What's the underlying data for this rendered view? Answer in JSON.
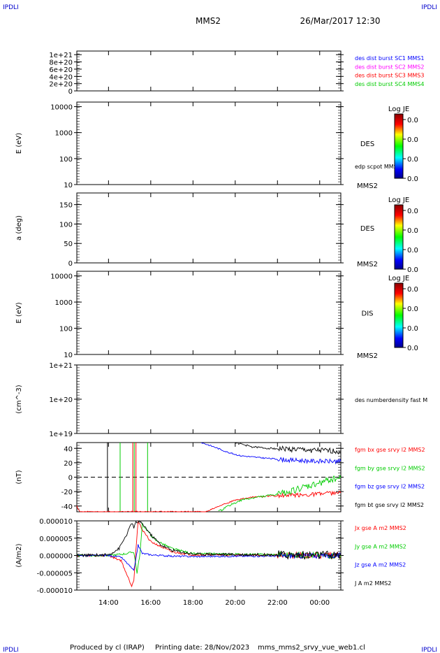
{
  "corner_left": "IPDLI",
  "corner_right": "IPDLI",
  "corner_bottom_left": "IPDLI",
  "corner_bottom_right": "IPDLI",
  "header": {
    "spacecraft": "MMS2",
    "datetime": "26/Mar/2017 12:30"
  },
  "footer": {
    "produced": "Produced by cl (IRAP)",
    "printing_date": "Printing date: 28/Nov/2023",
    "file": "mms_mms2_srvy_vue_web1.cl"
  },
  "colors": {
    "black": "#000000",
    "blue": "#0000ff",
    "magenta": "#ff00ff",
    "red": "#ff0000",
    "green": "#00cc00",
    "corner": "#0000cc"
  },
  "chart_data": [
    {
      "type": "line",
      "ylim": [
        0,
        1.1e+21
      ],
      "y_ticks": [
        "1e+21",
        "8e+20",
        "6e+20",
        "4e+20",
        "2e+20",
        "0"
      ],
      "y_tick_values": [
        1e+21,
        8e+20,
        6e+20,
        4e+20,
        2e+20,
        0
      ],
      "zero_line": true,
      "legend": [
        {
          "label": "des dist burst SC1 MMS1",
          "color": "#0000ff"
        },
        {
          "label": "des dist burst SC2 MMS2",
          "color": "#ff00ff"
        },
        {
          "label": "des dist burst SC3 MMS3",
          "color": "#ff0000"
        },
        {
          "label": "des dist burst SC4 MMS4",
          "color": "#00cc00"
        }
      ]
    },
    {
      "type": "heatmap",
      "ylabel": "E (eV)",
      "y_scale": "log",
      "ylim": [
        10,
        15000
      ],
      "y_ticks": [
        "10000",
        "1000",
        "100",
        "10"
      ],
      "y_tick_values": [
        10000,
        1000,
        100,
        10
      ],
      "species": "DES",
      "spacecraft": "MMS2",
      "overlay_label": "edp scpot MMS2",
      "colorbar": {
        "title": "Log JE",
        "ticks": [
          "0.0",
          "0.0",
          "0.0",
          "0.0"
        ]
      }
    },
    {
      "type": "heatmap",
      "ylabel": "a (deg)",
      "ylim": [
        0,
        180
      ],
      "y_ticks": [
        "150",
        "100",
        "50",
        "0"
      ],
      "y_tick_values": [
        150,
        100,
        50,
        0
      ],
      "species": "DES",
      "spacecraft": "MMS2",
      "colorbar": {
        "title": "Log JE",
        "ticks": [
          "0.0",
          "0.0",
          "0.0",
          "0.0"
        ]
      }
    },
    {
      "type": "heatmap",
      "ylabel": "E (eV)",
      "y_scale": "log",
      "ylim": [
        10,
        15000
      ],
      "y_ticks": [
        "10000",
        "1000",
        "100",
        "10"
      ],
      "y_tick_values": [
        10000,
        1000,
        100,
        10
      ],
      "species": "DIS",
      "spacecraft": "MMS2",
      "colorbar": {
        "title": "Log JE",
        "ticks": [
          "0.0",
          "0.0",
          "0.0",
          "0.0"
        ]
      }
    },
    {
      "type": "line",
      "ylabel": "(cm^-3)",
      "y_scale": "log",
      "ylim": [
        1e+19,
        1e+21
      ],
      "y_ticks": [
        "1e+21",
        "1e+20",
        "1e+19"
      ],
      "y_tick_values": [
        1e+21,
        1e+20,
        1e+19
      ],
      "legend": [
        {
          "label": "des numberdensity fast M",
          "color": "#000000"
        }
      ]
    },
    {
      "type": "line",
      "ylabel": "(nT)",
      "ylim": [
        -48,
        48
      ],
      "y_ticks": [
        "40",
        "20",
        "0",
        "-20",
        "-40"
      ],
      "y_tick_values": [
        40,
        20,
        0,
        -20,
        -40
      ],
      "zero_line": true,
      "legend": [
        {
          "label": "fgm bx gse srvy l2 MMS2",
          "color": "#ff0000"
        },
        {
          "label": "fgm by gse srvy l2 MMS2",
          "color": "#00cc00"
        },
        {
          "label": "fgm bz gse srvy l2 MMS2",
          "color": "#0000ff"
        },
        {
          "label": "fgm bt gse srvy l2 MMS2",
          "color": "#000000"
        }
      ],
      "series": [
        {
          "name": "fgm bt gse srvy l2 MMS2",
          "color": "#000000",
          "x": [
            20.0,
            20.8,
            21.6,
            22.4,
            23.2,
            24.0,
            24.8,
            25.0
          ],
          "y": [
            48,
            42,
            40,
            39,
            38,
            37,
            36,
            36
          ],
          "noise": 0.1
        },
        {
          "name": "fgm bz gse srvy l2 MMS2",
          "color": "#0000ff",
          "x": [
            18.4,
            19.0,
            19.6,
            20.2,
            20.8,
            21.6,
            22.4,
            23.2,
            24.0,
            25.0
          ],
          "y": [
            48,
            42,
            35,
            30,
            28,
            26,
            24,
            23,
            22,
            22
          ],
          "noise": 0.08
        },
        {
          "name": "fgm bx gse srvy l2 MMS2",
          "color": "#ff0000",
          "x": [
            12.5,
            12.65,
            18.6,
            19.2,
            20.0,
            21.0,
            22.0,
            23.0,
            24.0,
            25.0
          ],
          "y": [
            -40,
            -48,
            -48,
            -40,
            -32,
            -27,
            -26,
            -25,
            -23,
            -22
          ],
          "noise": 0.08
        },
        {
          "name": "fgm by gse srvy l2 MMS2",
          "color": "#00cc00",
          "x": [
            19.2,
            19.8,
            20.4,
            21.2,
            22.0,
            22.8,
            23.6,
            24.0,
            24.5,
            25.0
          ],
          "y": [
            -48,
            -38,
            -31,
            -27,
            -24,
            -18,
            -12,
            -8,
            -3,
            -1
          ],
          "noise": 0.12
        }
      ],
      "vertical_lines": [
        {
          "x": 13.95,
          "color": "#000000"
        },
        {
          "x": 14.55,
          "color": "#00cc00"
        },
        {
          "x": 15.15,
          "color": "#ff0000"
        },
        {
          "x": 15.22,
          "color": "#00cc00"
        },
        {
          "x": 15.3,
          "color": "#ff0000"
        },
        {
          "x": 15.85,
          "color": "#00cc00"
        }
      ]
    },
    {
      "type": "line",
      "ylabel": "(A/m2)",
      "xlim": [
        12.5,
        25.0
      ],
      "ylim": [
        -1e-05,
        1e-05
      ],
      "y_ticks": [
        "0.000010",
        "0.000005",
        "0.000000",
        "-0.000005",
        "-0.000010"
      ],
      "y_tick_values": [
        1e-05,
        5e-06,
        0,
        -5e-06,
        -1e-05
      ],
      "x_ticks": [
        "14:00",
        "16:00",
        "18:00",
        "20:00",
        "22:00",
        "00:00"
      ],
      "x_tick_values": [
        14,
        16,
        18,
        20,
        22,
        24
      ],
      "legend": [
        {
          "label": "Jx gse A m2 MMS2",
          "color": "#ff0000"
        },
        {
          "label": "Jy gse A m2 MMS2",
          "color": "#00cc00"
        },
        {
          "label": "Jz gse A m2 MMS2",
          "color": "#0000ff"
        },
        {
          "label": "J A m2 MMS2",
          "color": "#000000"
        }
      ],
      "series": [
        {
          "name": "Jx gse A m2 MMS2",
          "color": "#ff0000",
          "x": [
            12.5,
            14.0,
            14.6,
            14.9,
            15.1,
            15.2,
            15.3,
            15.4,
            15.6,
            16.0,
            17.0,
            18.0,
            25.0
          ],
          "y": [
            0,
            0,
            -1.5e-06,
            -6e-06,
            -8.8e-06,
            -7e-06,
            2e-06,
            9.8e-06,
            7.5e-06,
            4e-06,
            1e-06,
            2e-07,
            0
          ],
          "noise": 3e-06
        },
        {
          "name": "Jy gse A m2 MMS2",
          "color": "#00cc00",
          "x": [
            12.5,
            14.0,
            14.8,
            15.2,
            15.35,
            15.5,
            15.6,
            15.8,
            16.2,
            17.0,
            18.0,
            25.0
          ],
          "y": [
            0,
            0,
            5e-07,
            1e-06,
            -5e-06,
            1e-06,
            9e-06,
            7.5e-06,
            4.5e-06,
            2e-06,
            5e-07,
            0
          ],
          "noise": 3e-06
        },
        {
          "name": "Jz gse A m2 MMS2",
          "color": "#0000ff",
          "x": [
            12.5,
            14.0,
            14.6,
            15.0,
            15.2,
            15.4,
            15.6,
            16.0,
            17.0,
            18.0,
            25.0
          ],
          "y": [
            0,
            0,
            -5e-07,
            -3e-06,
            -4.5e-06,
            3e-06,
            6e-07,
            2e-07,
            -2e-07,
            -3e-07,
            0
          ],
          "noise": 2.5e-06
        },
        {
          "name": "J A m2 MMS2",
          "color": "#000000",
          "x": [
            12.5,
            14.0,
            14.5,
            14.9,
            15.1,
            15.2,
            15.3,
            15.45,
            15.7,
            16.0,
            16.5,
            17.0,
            18.0,
            25.0
          ],
          "y": [
            0,
            2e-07,
            2e-06,
            6.5e-06,
            9.5e-06,
            8e-06,
            9.5e-06,
            9.8e-06,
            8.5e-06,
            6e-06,
            3e-06,
            1.5e-06,
            4e-07,
            0
          ],
          "noise": 4e-06
        }
      ]
    }
  ]
}
